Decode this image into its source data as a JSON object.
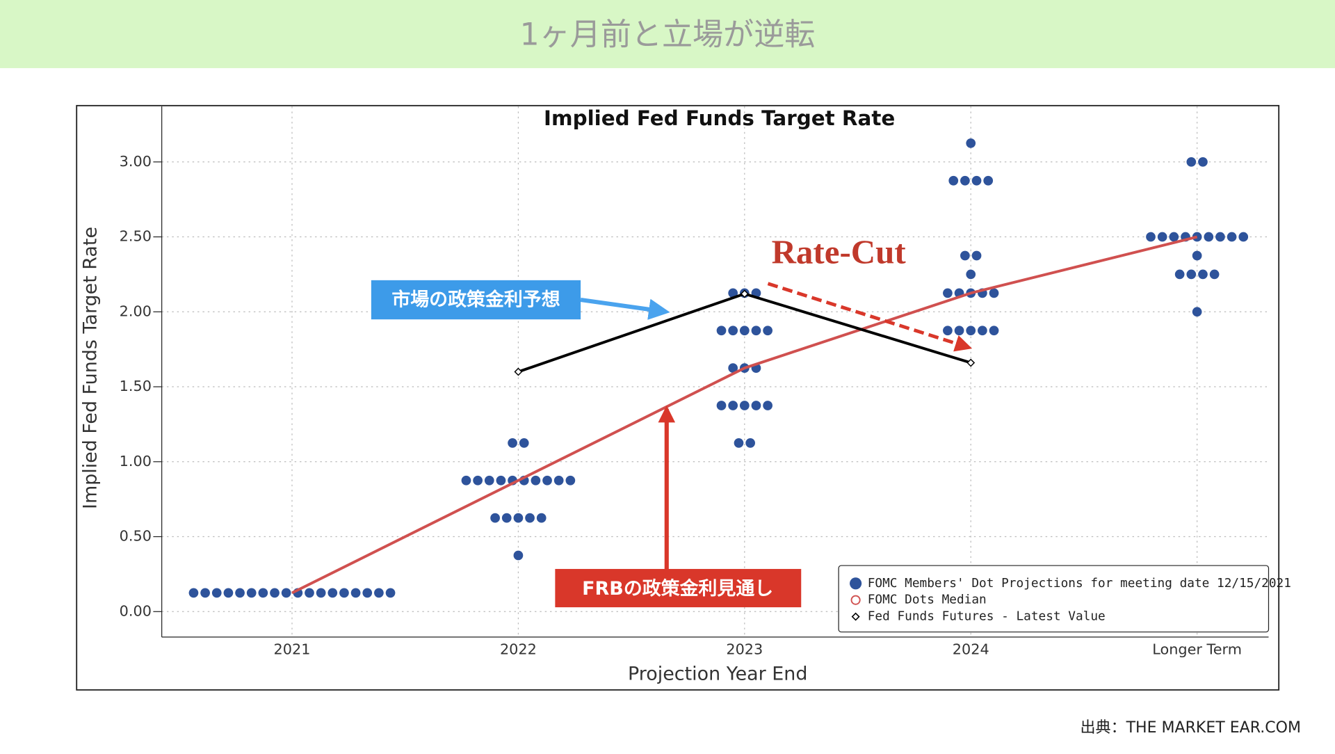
{
  "slide_title": "1ヶ月前と立場が逆転",
  "source": "出典：THE MARKET EAR.COM",
  "annotations": [
    "市場の政策金利予想",
    "FRBの政策金利見通し",
    "Rate-Cut"
  ],
  "chart_data": {
    "type": "dot-plot",
    "title": "Implied Fed Funds Target Rate",
    "x_label": "Projection Year End",
    "y_label": "Implied Fed Funds Target Rate",
    "categories": [
      "2021",
      "2022",
      "2023",
      "2024",
      "Longer Term"
    ],
    "series": [
      {
        "name": "FOMC Members' Dot Projections for meeting date 12/15/2021",
        "color": "#2e539b",
        "marker": "filled-circle",
        "values": [
          [
            0.125,
            0.125,
            0.125,
            0.125,
            0.125,
            0.125,
            0.125,
            0.125,
            0.125,
            0.125,
            0.125,
            0.125,
            0.125,
            0.125,
            0.125,
            0.125,
            0.125,
            0.125
          ],
          [
            0.375,
            0.625,
            0.625,
            0.625,
            0.625,
            0.625,
            0.875,
            0.875,
            0.875,
            0.875,
            0.875,
            0.875,
            0.875,
            0.875,
            0.875,
            0.875,
            1.125,
            1.125
          ],
          [
            1.125,
            1.125,
            1.375,
            1.375,
            1.375,
            1.375,
            1.375,
            1.625,
            1.625,
            1.625,
            1.875,
            1.875,
            1.875,
            1.875,
            1.875,
            2.125,
            2.125,
            2.125
          ],
          [
            1.875,
            1.875,
            1.875,
            1.875,
            1.875,
            2.125,
            2.125,
            2.125,
            2.125,
            2.125,
            2.25,
            2.375,
            2.375,
            2.875,
            2.875,
            2.875,
            2.875,
            3.125
          ],
          [
            2.0,
            2.25,
            2.25,
            2.25,
            2.25,
            2.375,
            2.5,
            2.5,
            2.5,
            2.5,
            2.5,
            2.5,
            2.5,
            2.5,
            2.5,
            3.0,
            3.0
          ]
        ]
      },
      {
        "name": "FOMC Dots Median",
        "color": "#d0504f",
        "marker": "open-circle",
        "values": [
          0.125,
          0.875,
          1.625,
          2.125,
          2.5
        ]
      },
      {
        "name": "Fed Funds Futures - Latest Value",
        "color": "#000000",
        "marker": "diamond",
        "values": [
          null,
          1.6,
          2.12,
          1.66,
          null
        ]
      }
    ],
    "ylim": [
      -0.17,
      3.37
    ],
    "yticks": [
      {
        "value": 0,
        "label": "0.00"
      },
      {
        "value": 0.5,
        "label": "0.50"
      },
      {
        "value": 1,
        "label": "1.00"
      },
      {
        "value": 1.5,
        "label": "1.50"
      },
      {
        "value": 2,
        "label": "2.00"
      },
      {
        "value": 2.5,
        "label": "2.50"
      },
      {
        "value": 3,
        "label": "3.00"
      }
    ],
    "grid": true,
    "legend": "lower right"
  }
}
